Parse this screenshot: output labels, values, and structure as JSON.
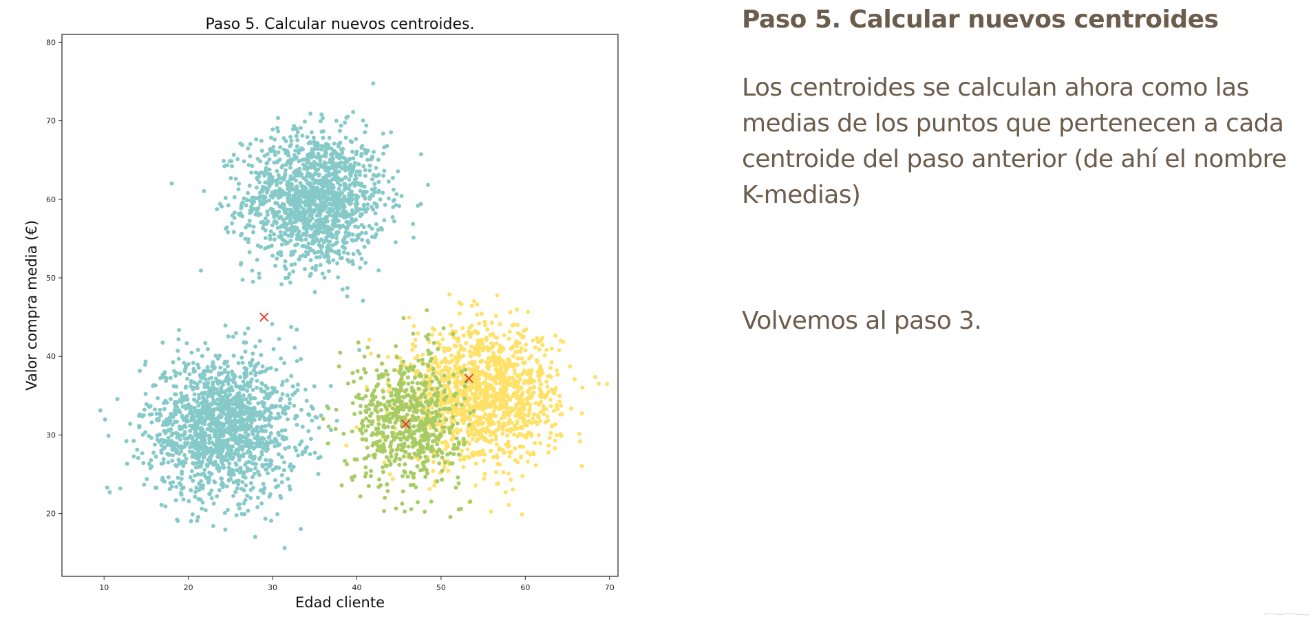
{
  "slide": {
    "heading": "Paso 5. Calcular nuevos centroides",
    "body": "Los centroides se calculan ahora como las medias de los puntos que pertenecen a cada centroide del paso anterior (de ahí el nombre K-medias)",
    "note": "Volvemos al paso 3."
  },
  "colors": {
    "teal": "#86c9c9",
    "yellow": "#ffe167",
    "green": "#a8cc63",
    "centroid": "#e8332a",
    "text": "#6b5c4b"
  },
  "chart_data": {
    "type": "scatter",
    "title": "Paso 5. Calcular nuevos centroides.",
    "xlabel": "Edad cliente",
    "ylabel": "Valor compra media (€)",
    "xlim": [
      5,
      71
    ],
    "ylim": [
      12,
      81
    ],
    "xticks": [
      10,
      20,
      30,
      40,
      50,
      60,
      70
    ],
    "yticks": [
      20,
      30,
      40,
      50,
      60,
      70,
      80
    ],
    "grid": false,
    "clusters": [
      {
        "color": "teal",
        "center": [
          35,
          60
        ],
        "spread": [
          4.2,
          4.3
        ],
        "count": 1400
      },
      {
        "color": "teal",
        "center": [
          24,
          31
        ],
        "spread": [
          4.5,
          4.5
        ],
        "count": 1500
      },
      {
        "color": "yellow",
        "center": [
          55,
          35
        ],
        "spread": [
          4.5,
          4.3
        ],
        "count": 1300
      },
      {
        "color": "green",
        "center": [
          46,
          32
        ],
        "spread": [
          3.2,
          4.2
        ],
        "count": 650
      }
    ],
    "centroids": [
      {
        "x": 29,
        "y": 45
      },
      {
        "x": 53.3,
        "y": 37.2
      },
      {
        "x": 45.8,
        "y": 31.4
      }
    ]
  }
}
